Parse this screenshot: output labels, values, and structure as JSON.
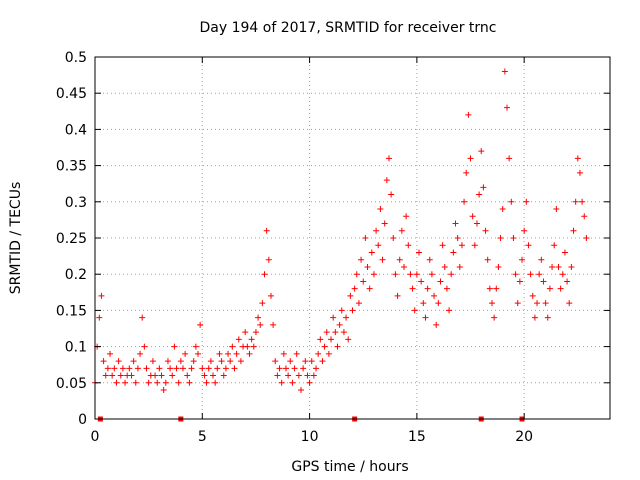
{
  "chart_data": {
    "type": "scatter",
    "title": "Day 194 of 2017, SRMTID for receiver trnc",
    "xlabel": "GPS time / hours",
    "ylabel": "SRMTID / TECUs",
    "xlim": [
      0,
      24
    ],
    "ylim": [
      0,
      0.5
    ],
    "x_ticks": [
      0,
      5,
      10,
      15,
      20
    ],
    "x_tick_labels": [
      "0",
      "5",
      "10",
      "15",
      "20"
    ],
    "y_ticks": [
      0,
      0.05,
      0.1,
      0.15,
      0.2,
      0.25,
      0.3,
      0.35,
      0.4,
      0.45,
      0.5
    ],
    "y_tick_labels": [
      "0",
      "0.05",
      "0.1",
      "0.15",
      "0.2",
      "0.25",
      "0.3",
      "0.35",
      "0.4",
      "0.45",
      "0.5"
    ],
    "grid": true,
    "marker": "+",
    "series": [
      {
        "name": "SRMTID",
        "color": "#ff0000",
        "x": [
          0.0,
          0.1,
          0.2,
          0.3,
          0.4,
          0.5,
          0.6,
          0.7,
          0.8,
          0.9,
          1.0,
          1.1,
          1.2,
          1.3,
          1.4,
          1.5,
          1.6,
          1.7,
          1.8,
          1.9,
          2.0,
          2.1,
          2.2,
          2.3,
          2.4,
          2.5,
          2.6,
          2.7,
          2.8,
          2.9,
          3.0,
          3.1,
          3.2,
          3.3,
          3.4,
          3.5,
          3.6,
          3.7,
          3.8,
          3.9,
          4.0,
          4.1,
          4.2,
          4.3,
          4.4,
          4.5,
          4.6,
          4.7,
          4.8,
          4.9,
          5.0,
          5.1,
          5.2,
          5.3,
          5.4,
          5.5,
          5.6,
          5.7,
          5.8,
          5.9,
          6.0,
          6.1,
          6.2,
          6.3,
          6.4,
          6.5,
          6.6,
          6.7,
          6.8,
          6.9,
          7.0,
          7.1,
          7.2,
          7.3,
          7.4,
          7.5,
          7.6,
          7.7,
          7.8,
          7.9,
          8.0,
          8.1,
          8.2,
          8.3,
          8.4,
          8.5,
          8.6,
          8.7,
          8.8,
          8.9,
          9.0,
          9.1,
          9.2,
          9.3,
          9.4,
          9.5,
          9.6,
          9.7,
          9.8,
          9.9,
          10.0,
          10.1,
          10.2,
          10.3,
          10.4,
          10.5,
          10.6,
          10.7,
          10.8,
          10.9,
          11.0,
          11.1,
          11.2,
          11.3,
          11.4,
          11.5,
          11.6,
          11.7,
          11.8,
          11.9,
          12.0,
          12.1,
          12.2,
          12.3,
          12.4,
          12.5,
          12.6,
          12.7,
          12.8,
          12.9,
          13.0,
          13.1,
          13.2,
          13.3,
          13.4,
          13.5,
          13.6,
          13.7,
          13.8,
          13.9,
          14.0,
          14.1,
          14.2,
          14.3,
          14.4,
          14.5,
          14.6,
          14.7,
          14.8,
          14.9,
          15.0,
          15.1,
          15.2,
          15.3,
          15.4,
          15.5,
          15.6,
          15.7,
          15.8,
          15.9,
          16.0,
          16.1,
          16.2,
          16.3,
          16.4,
          16.5,
          16.6,
          16.7,
          16.8,
          16.9,
          17.0,
          17.1,
          17.2,
          17.3,
          17.4,
          17.5,
          17.6,
          17.7,
          17.8,
          17.9,
          18.0,
          18.1,
          18.2,
          18.3,
          18.4,
          18.5,
          18.6,
          18.7,
          18.8,
          18.9,
          19.0,
          19.1,
          19.2,
          19.3,
          19.4,
          19.5,
          19.6,
          19.7,
          19.8,
          19.9,
          20.0,
          20.1,
          20.2,
          20.3,
          20.4,
          20.5,
          20.6,
          20.7,
          20.8,
          20.9,
          21.0,
          21.1,
          21.2,
          21.3,
          21.4,
          21.5,
          21.6,
          21.7,
          21.8,
          21.9,
          22.0,
          22.1,
          22.2,
          22.3,
          22.4,
          22.5,
          22.6,
          22.7,
          22.8,
          22.9
        ],
        "y": [
          0.05,
          0.1,
          0.14,
          0.17,
          0.08,
          0.06,
          0.07,
          0.09,
          0.06,
          0.07,
          0.05,
          0.08,
          0.06,
          0.07,
          0.05,
          0.06,
          0.07,
          0.06,
          0.08,
          0.05,
          0.07,
          0.09,
          0.14,
          0.1,
          0.07,
          0.05,
          0.06,
          0.08,
          0.06,
          0.05,
          0.07,
          0.06,
          0.04,
          0.05,
          0.08,
          0.07,
          0.06,
          0.1,
          0.07,
          0.05,
          0.08,
          0.07,
          0.09,
          0.06,
          0.05,
          0.07,
          0.08,
          0.1,
          0.09,
          0.13,
          0.07,
          0.06,
          0.05,
          0.07,
          0.08,
          0.06,
          0.05,
          0.07,
          0.09,
          0.08,
          0.06,
          0.07,
          0.09,
          0.08,
          0.1,
          0.07,
          0.09,
          0.11,
          0.08,
          0.1,
          0.12,
          0.1,
          0.09,
          0.11,
          0.1,
          0.12,
          0.14,
          0.13,
          0.16,
          0.2,
          0.26,
          0.22,
          0.17,
          0.13,
          0.08,
          0.06,
          0.07,
          0.05,
          0.09,
          0.07,
          0.06,
          0.08,
          0.05,
          0.07,
          0.09,
          0.06,
          0.04,
          0.07,
          0.08,
          0.06,
          0.05,
          0.08,
          0.06,
          0.07,
          0.09,
          0.11,
          0.08,
          0.1,
          0.12,
          0.09,
          0.11,
          0.14,
          0.12,
          0.1,
          0.13,
          0.15,
          0.12,
          0.14,
          0.11,
          0.17,
          0.15,
          0.18,
          0.2,
          0.16,
          0.22,
          0.19,
          0.25,
          0.21,
          0.18,
          0.23,
          0.2,
          0.26,
          0.24,
          0.29,
          0.22,
          0.27,
          0.33,
          0.36,
          0.31,
          0.25,
          0.2,
          0.17,
          0.22,
          0.26,
          0.21,
          0.28,
          0.24,
          0.2,
          0.18,
          0.15,
          0.2,
          0.23,
          0.19,
          0.16,
          0.14,
          0.18,
          0.22,
          0.2,
          0.17,
          0.13,
          0.16,
          0.19,
          0.24,
          0.21,
          0.18,
          0.15,
          0.2,
          0.23,
          0.27,
          0.25,
          0.21,
          0.24,
          0.3,
          0.34,
          0.42,
          0.36,
          0.28,
          0.24,
          0.27,
          0.31,
          0.37,
          0.32,
          0.26,
          0.22,
          0.18,
          0.16,
          0.14,
          0.18,
          0.21,
          0.25,
          0.29,
          0.48,
          0.43,
          0.36,
          0.3,
          0.25,
          0.2,
          0.16,
          0.19,
          0.22,
          0.26,
          0.3,
          0.24,
          0.2,
          0.17,
          0.14,
          0.16,
          0.2,
          0.22,
          0.19,
          0.16,
          0.14,
          0.18,
          0.21,
          0.24,
          0.29,
          0.21,
          0.18,
          0.2,
          0.23,
          0.19,
          0.16,
          0.21,
          0.26,
          0.3,
          0.36,
          0.34,
          0.3,
          0.28,
          0.25
        ]
      }
    ],
    "x_axis_markers": [
      0.25,
      4.0,
      12.1,
      18.0,
      19.9
    ]
  }
}
